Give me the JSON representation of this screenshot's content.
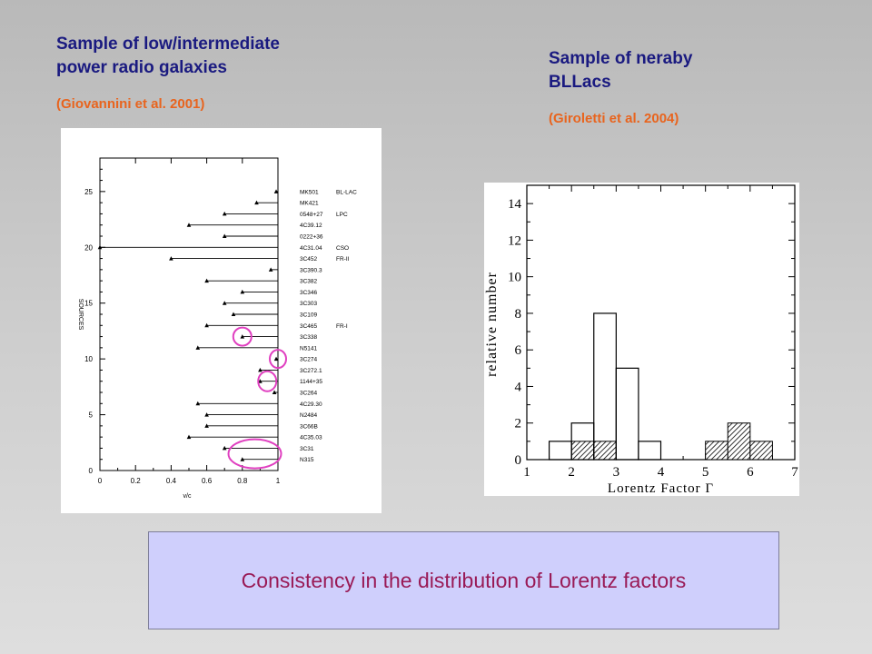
{
  "left": {
    "heading_line1": "Sample of low/intermediate",
    "heading_line2": "power radio  galaxies",
    "citation": "(Giovannini et al. 2001)"
  },
  "right": {
    "heading_line1": "Sample of neraby",
    "heading_line2": "BLLacs",
    "citation": "(Giroletti et al. 2004)"
  },
  "caption": "Consistency in the distribution of Lorentz  factors",
  "colors": {
    "heading": "#1a1a80",
    "citation": "#e8641e",
    "caption_text": "#991a56",
    "caption_bg": "#cfcffc",
    "highlight_circle": "#e040c0"
  },
  "chart_data": [
    {
      "type": "scatter",
      "xlabel": "v/c",
      "ylabel": "SOURCES",
      "xlim": [
        0,
        1
      ],
      "ylim": [
        0,
        28
      ],
      "x_ticks": [
        "0",
        "0.2",
        "0.4",
        "0.6",
        "0.8",
        "1"
      ],
      "y_ticks": [
        "0",
        "5",
        "10",
        "15",
        "20",
        "25"
      ],
      "sources": [
        {
          "name": "MK501",
          "class": "BL-LAC",
          "y": 25,
          "v": 0.99
        },
        {
          "name": "MK421",
          "class": "",
          "y": 24,
          "v": 0.88
        },
        {
          "name": "0548+27",
          "class": "LPC",
          "y": 23,
          "v": 0.7
        },
        {
          "name": "4C39.12",
          "class": "",
          "y": 22,
          "v": 0.5
        },
        {
          "name": "0222+36",
          "class": "",
          "y": 21,
          "v": 0.7
        },
        {
          "name": "4C31.04",
          "class": "CSO",
          "y": 20,
          "v": 0.0
        },
        {
          "name": "3C452",
          "class": "FR-II",
          "y": 19,
          "v": 0.4
        },
        {
          "name": "3C390.3",
          "class": "",
          "y": 18,
          "v": 0.96
        },
        {
          "name": "3C382",
          "class": "",
          "y": 17,
          "v": 0.6
        },
        {
          "name": "3C346",
          "class": "",
          "y": 16,
          "v": 0.8
        },
        {
          "name": "3C303",
          "class": "",
          "y": 15,
          "v": 0.7
        },
        {
          "name": "3C109",
          "class": "",
          "y": 14,
          "v": 0.75
        },
        {
          "name": "3C465",
          "class": "FR-I",
          "y": 13,
          "v": 0.6
        },
        {
          "name": "3C338",
          "class": "",
          "y": 12,
          "v": 0.8
        },
        {
          "name": "N5141",
          "class": "",
          "y": 11,
          "v": 0.55
        },
        {
          "name": "3C274",
          "class": "",
          "y": 10,
          "v": 0.99
        },
        {
          "name": "3C272.1",
          "class": "",
          "y": 9,
          "v": 0.9
        },
        {
          "name": "1144+35",
          "class": "",
          "y": 8,
          "v": 0.9
        },
        {
          "name": "3C264",
          "class": "",
          "y": 7,
          "v": 0.98
        },
        {
          "name": "4C29.30",
          "class": "",
          "y": 6,
          "v": 0.55
        },
        {
          "name": "N2484",
          "class": "",
          "y": 5,
          "v": 0.6
        },
        {
          "name": "3C66B",
          "class": "",
          "y": 4,
          "v": 0.6
        },
        {
          "name": "4C35.03",
          "class": "",
          "y": 3,
          "v": 0.5
        },
        {
          "name": "3C31",
          "class": "",
          "y": 2,
          "v": 0.7
        },
        {
          "name": "N315",
          "class": "",
          "y": 1,
          "v": 0.8
        }
      ],
      "highlighted_sources": [
        "3C338",
        "3C274",
        "1144+35",
        "3C31",
        "N315"
      ]
    },
    {
      "type": "bar",
      "xlabel": "Lorentz Factor Γ",
      "ylabel": "relative number",
      "xlim": [
        1,
        7
      ],
      "ylim": [
        0,
        15
      ],
      "x_ticks": [
        "1",
        "2",
        "3",
        "4",
        "5",
        "6",
        "7"
      ],
      "y_ticks": [
        "0",
        "2",
        "4",
        "6",
        "8",
        "10",
        "12",
        "14"
      ],
      "bin_edges": [
        1.5,
        2.0,
        2.5,
        3.0,
        3.5,
        4.0,
        4.5,
        5.0,
        5.5,
        6.0,
        6.5
      ],
      "series": [
        {
          "values": [
            1,
            2,
            8,
            5,
            1,
            0,
            0,
            0,
            0,
            0
          ],
          "fill": "open"
        },
        {
          "values": [
            0,
            1,
            1,
            0,
            0,
            0,
            0,
            1,
            2,
            1
          ],
          "fill": "hatched"
        }
      ]
    }
  ]
}
